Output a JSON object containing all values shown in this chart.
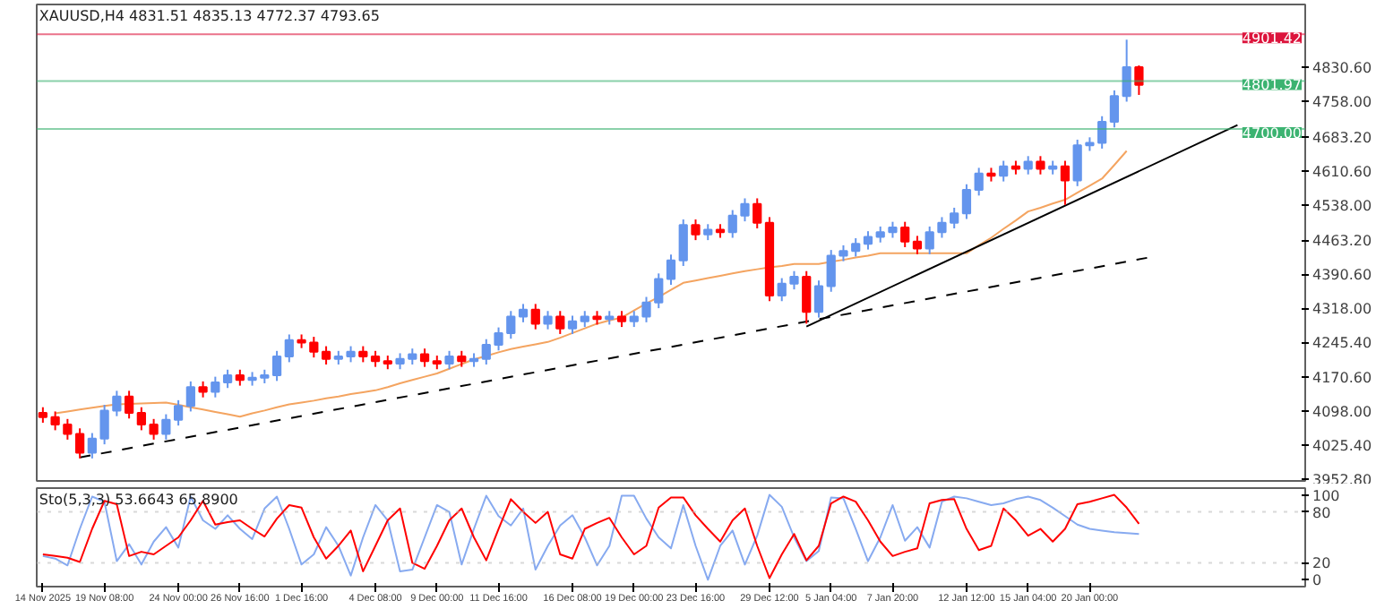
{
  "chart_data": [
    {
      "type": "candlestick",
      "title": "XAUUSD,H4  4831.51 4835.13 4772.37 4793.65",
      "categories": [
        null,
        null,
        null,
        null,
        null,
        null,
        null,
        null,
        null,
        null,
        null,
        null,
        null,
        null,
        null,
        null,
        null,
        null,
        null,
        null,
        null,
        null,
        null,
        null,
        null,
        null,
        null,
        null,
        null,
        null,
        null,
        null,
        null,
        null,
        null,
        null,
        null,
        null,
        null,
        null,
        null,
        null,
        null,
        null,
        null,
        null,
        null,
        null,
        null,
        null,
        null,
        null,
        null,
        null,
        null,
        null,
        null,
        null,
        null,
        null,
        null,
        null,
        null,
        null,
        null,
        null,
        null,
        null,
        null,
        null,
        null,
        null,
        null,
        null,
        null,
        null,
        null,
        null,
        null,
        null,
        null,
        null,
        null,
        null,
        null,
        null,
        null,
        null,
        null,
        null,
        null,
        null,
        null,
        null,
        null,
        null,
        null,
        null,
        null,
        null,
        null,
        null,
        null
      ],
      "ohlc": [
        [
          4095,
          4107,
          4074,
          4086
        ],
        [
          4086,
          4098,
          4058,
          4070
        ],
        [
          4070,
          4082,
          4038,
          4050
        ],
        [
          4050,
          4062,
          3998,
          4010
        ],
        [
          4010,
          4052,
          3998,
          4040
        ],
        [
          4040,
          4112,
          4028,
          4100
        ],
        [
          4100,
          4142,
          4088,
          4130
        ],
        [
          4130,
          4142,
          4083,
          4095
        ],
        [
          4095,
          4107,
          4058,
          4070
        ],
        [
          4070,
          4082,
          4038,
          4050
        ],
        [
          4050,
          4092,
          4038,
          4080
        ],
        [
          4080,
          4122,
          4068,
          4110
        ],
        [
          4110,
          4162,
          4098,
          4150
        ],
        [
          4150,
          4162,
          4128,
          4140
        ],
        [
          4140,
          4172,
          4128,
          4160
        ],
        [
          4160,
          4187,
          4148,
          4175
        ],
        [
          4175,
          4187,
          4153,
          4165
        ],
        [
          4165,
          4182,
          4153,
          4170
        ],
        [
          4170,
          4187,
          4158,
          4175
        ],
        [
          4175,
          4227,
          4163,
          4215
        ],
        [
          4215,
          4262,
          4203,
          4250
        ],
        [
          4250,
          4262,
          4233,
          4245
        ],
        [
          4245,
          4257,
          4213,
          4225
        ],
        [
          4225,
          4237,
          4198,
          4210
        ],
        [
          4210,
          4227,
          4198,
          4215
        ],
        [
          4215,
          4237,
          4203,
          4225
        ],
        [
          4225,
          4237,
          4203,
          4215
        ],
        [
          4215,
          4227,
          4193,
          4205
        ],
        [
          4205,
          4217,
          4188,
          4200
        ],
        [
          4200,
          4222,
          4188,
          4210
        ],
        [
          4210,
          4232,
          4198,
          4220
        ],
        [
          4220,
          4232,
          4193,
          4205
        ],
        [
          4205,
          4217,
          4188,
          4200
        ],
        [
          4200,
          4227,
          4188,
          4215
        ],
        [
          4215,
          4227,
          4193,
          4205
        ],
        [
          4205,
          4222,
          4193,
          4210
        ],
        [
          4210,
          4252,
          4198,
          4240
        ],
        [
          4240,
          4277,
          4228,
          4265
        ],
        [
          4265,
          4312,
          4253,
          4300
        ],
        [
          4300,
          4327,
          4288,
          4315
        ],
        [
          4315,
          4327,
          4273,
          4285
        ],
        [
          4285,
          4312,
          4273,
          4300
        ],
        [
          4300,
          4312,
          4263,
          4275
        ],
        [
          4275,
          4302,
          4263,
          4290
        ],
        [
          4290,
          4312,
          4278,
          4300
        ],
        [
          4300,
          4312,
          4283,
          4295
        ],
        [
          4295,
          4312,
          4283,
          4300
        ],
        [
          4300,
          4312,
          4278,
          4290
        ],
        [
          4290,
          4312,
          4278,
          4300
        ],
        [
          4300,
          4342,
          4288,
          4330
        ],
        [
          4330,
          4392,
          4318,
          4380
        ],
        [
          4380,
          4432,
          4368,
          4420
        ],
        [
          4420,
          4507,
          4408,
          4495
        ],
        [
          4495,
          4507,
          4463,
          4475
        ],
        [
          4475,
          4497,
          4463,
          4485
        ],
        [
          4485,
          4497,
          4468,
          4480
        ],
        [
          4480,
          4527,
          4468,
          4515
        ],
        [
          4515,
          4552,
          4503,
          4540
        ],
        [
          4540,
          4552,
          4488,
          4500
        ],
        [
          4500,
          4512,
          4333,
          4345
        ],
        [
          4345,
          4382,
          4333,
          4370
        ],
        [
          4370,
          4397,
          4358,
          4385
        ],
        [
          4385,
          4397,
          4285,
          4310
        ],
        [
          4310,
          4377,
          4298,
          4365
        ],
        [
          4365,
          4442,
          4353,
          4430
        ],
        [
          4430,
          4452,
          4418,
          4440
        ],
        [
          4440,
          4467,
          4428,
          4455
        ],
        [
          4455,
          4482,
          4443,
          4470
        ],
        [
          4470,
          4492,
          4458,
          4480
        ],
        [
          4480,
          4502,
          4468,
          4490
        ],
        [
          4490,
          4502,
          4448,
          4460
        ],
        [
          4460,
          4472,
          4433,
          4445
        ],
        [
          4445,
          4492,
          4433,
          4480
        ],
        [
          4480,
          4512,
          4468,
          4500
        ],
        [
          4500,
          4532,
          4488,
          4520
        ],
        [
          4520,
          4582,
          4508,
          4570
        ],
        [
          4570,
          4617,
          4558,
          4605
        ],
        [
          4605,
          4617,
          4588,
          4600
        ],
        [
          4600,
          4632,
          4588,
          4620
        ],
        [
          4620,
          4632,
          4603,
          4615
        ],
        [
          4615,
          4642,
          4603,
          4630
        ],
        [
          4630,
          4642,
          4603,
          4615
        ],
        [
          4615,
          4632,
          4603,
          4620
        ],
        [
          4620,
          4632,
          4538,
          4590
        ],
        [
          4590,
          4677,
          4578,
          4665
        ],
        [
          4665,
          4682,
          4653,
          4670
        ],
        [
          4670,
          4727,
          4658,
          4715
        ],
        [
          4715,
          4782,
          4703,
          4770
        ],
        [
          4770,
          4890,
          4758,
          4831.51
        ],
        [
          4831.51,
          4835.13,
          4772.37,
          4793.65
        ],
        null,
        null,
        null,
        null,
        null,
        null,
        null,
        null,
        null,
        null,
        null,
        null,
        null
      ],
      "series": [
        {
          "type": "line",
          "color": "#f4a460",
          "values": [
            null,
            4094,
            4098,
            4102,
            4106,
            4110,
            4113,
            4114,
            4115,
            4116,
            4117,
            4112,
            4107,
            4102,
            4097,
            4092,
            4087,
            4094,
            4100,
            4107,
            4113,
            4117,
            4121,
            4126,
            4130,
            4135,
            4139,
            4143,
            4150,
            4158,
            4165,
            4172,
            4179,
            4189,
            4199,
            4209,
            4216,
            4224,
            4231,
            4236,
            4241,
            4246,
            4255,
            4265,
            4275,
            4285,
            4292,
            4298,
            4313,
            4328,
            4342,
            4357,
            4372,
            4377,
            4382,
            4387,
            4392,
            4397,
            4401,
            4405,
            4408,
            4412,
            4412,
            4412,
            4417,
            4421,
            4426,
            4430,
            4435,
            4435,
            4435,
            4435,
            4435,
            4435,
            4435,
            4435,
            4452,
            4468,
            4487,
            4505,
            4524,
            4532,
            4541,
            4549,
            4564,
            4579,
            4594,
            4623,
            4653,
            null,
            null,
            null,
            null,
            null,
            null,
            null,
            null,
            null,
            null,
            null,
            null,
            null,
            null
          ]
        },
        {
          "type": "line",
          "color": "#000000",
          "line_style": "dashed",
          "values": [
            null,
            null,
            null,
            4000,
            null,
            null,
            null,
            null,
            null,
            null,
            null,
            null,
            null,
            null,
            null,
            null,
            null,
            null,
            null,
            null,
            null,
            null,
            null,
            null,
            null,
            null,
            null,
            null,
            null,
            null,
            null,
            null,
            null,
            null,
            null,
            null,
            null,
            null,
            null,
            null,
            null,
            null,
            null,
            null,
            null,
            null,
            null,
            null,
            null,
            null,
            null,
            null,
            null,
            null,
            null,
            null,
            null,
            null,
            null,
            null,
            null,
            null,
            null,
            null,
            null,
            null,
            null,
            null,
            null,
            null,
            null,
            null,
            null,
            null,
            null,
            null,
            null,
            null,
            null,
            null,
            null,
            null,
            null,
            null,
            null,
            null,
            null,
            null,
            null,
            null,
            4427,
            null,
            null,
            null,
            null,
            null,
            null,
            null,
            null,
            null,
            null,
            null,
            null
          ]
        },
        {
          "type": "line",
          "color": "#000000",
          "line_style": "solid",
          "values": [
            null,
            null,
            null,
            null,
            null,
            null,
            null,
            null,
            null,
            null,
            null,
            null,
            null,
            null,
            null,
            null,
            null,
            null,
            null,
            null,
            null,
            null,
            null,
            null,
            null,
            null,
            null,
            null,
            null,
            null,
            null,
            null,
            null,
            null,
            null,
            null,
            null,
            null,
            null,
            null,
            null,
            null,
            null,
            null,
            null,
            null,
            null,
            null,
            null,
            null,
            null,
            null,
            null,
            null,
            null,
            null,
            null,
            null,
            null,
            null,
            null,
            null,
            4279,
            null,
            null,
            null,
            null,
            null,
            null,
            null,
            null,
            null,
            null,
            null,
            null,
            null,
            null,
            null,
            null,
            null,
            null,
            null,
            null,
            null,
            null,
            null,
            null,
            null,
            null,
            null,
            null,
            null,
            null,
            null,
            null,
            null,
            null,
            4708,
            null,
            null,
            null,
            null,
            null
          ]
        }
      ],
      "ylim": [
        3950,
        4965
      ],
      "yticks": [
        {
          "value": 3952.8,
          "label": "3952.80"
        },
        {
          "value": 4025.4,
          "label": "4025.40"
        },
        {
          "value": 4098,
          "label": "4098.00"
        },
        {
          "value": 4170.6,
          "label": "4170.60"
        },
        {
          "value": 4245.4,
          "label": "4245.40"
        },
        {
          "value": 4318,
          "label": "4318.00"
        },
        {
          "value": 4390.6,
          "label": "4390.60"
        },
        {
          "value": 4463.2,
          "label": "4463.20"
        },
        {
          "value": 4538,
          "label": "4538.00"
        },
        {
          "value": 4610.6,
          "label": "4610.60"
        },
        {
          "value": 4683.2,
          "label": "4683.20"
        },
        {
          "value": 4758,
          "label": "4758.00"
        },
        {
          "value": 4830.6,
          "label": "4830.60"
        }
      ],
      "ref_lines": [
        {
          "axis": "y",
          "value": 4901.42,
          "label": "4901.42",
          "color": "#dc143c"
        },
        {
          "axis": "y",
          "value": 4801.97,
          "label": "4801.97",
          "color": "#3cb371"
        },
        {
          "axis": "y",
          "value": 4700,
          "label": "4700.00",
          "color": "#3cb371"
        }
      ],
      "tick_labels": "y"
    },
    {
      "type": "line",
      "title": "Sto(5,3,3) 53.6643 65.8900",
      "categories": [
        "14 Nov 2025",
        null,
        null,
        null,
        null,
        "19 Nov 08:00",
        null,
        null,
        null,
        null,
        null,
        "24 Nov 00:00",
        null,
        null,
        null,
        null,
        "26 Nov 16:00",
        null,
        null,
        null,
        null,
        "1 Dec 16:00",
        null,
        null,
        null,
        null,
        null,
        "4 Dec 08:00",
        null,
        null,
        null,
        null,
        "9 Dec 00:00",
        null,
        null,
        null,
        null,
        "11 Dec 16:00",
        null,
        null,
        null,
        null,
        null,
        "16 Dec 08:00",
        null,
        null,
        null,
        null,
        "19 Dec 00:00",
        null,
        null,
        null,
        null,
        "23 Dec 16:00",
        null,
        null,
        null,
        null,
        null,
        "29 Dec 12:00",
        null,
        null,
        null,
        null,
        "5 Jan 04:00",
        null,
        null,
        null,
        null,
        "7 Jan 20:00",
        null,
        null,
        null,
        null,
        null,
        "12 Jan 12:00",
        null,
        null,
        null,
        null,
        "15 Jan 04:00",
        null,
        null,
        null,
        null,
        "20 Jan 00:00",
        null,
        null,
        null,
        null,
        null,
        null,
        null,
        null,
        null,
        null,
        null,
        null,
        null,
        null,
        null,
        null,
        null
      ],
      "series": [
        {
          "color": "#87aaf0",
          "values": [
            28,
            25,
            17,
            60,
            98,
            92,
            22,
            42,
            18,
            45,
            62,
            38,
            98,
            70,
            60,
            76,
            60,
            48,
            84,
            98,
            60,
            18,
            30,
            62,
            40,
            5,
            50,
            88,
            70,
            10,
            12,
            50,
            88,
            80,
            18,
            60,
            99,
            75,
            64,
            84,
            12,
            40,
            64,
            76,
            50,
            17,
            40,
            99,
            99,
            72,
            50,
            37,
            88,
            40,
            0,
            40,
            58,
            18,
            52,
            100,
            86,
            50,
            22,
            34,
            97,
            96,
            60,
            22,
            50,
            88,
            46,
            62,
            38,
            92,
            98,
            96,
            92,
            88,
            90,
            95,
            98,
            94,
            85,
            75,
            65,
            60,
            58,
            56,
            55,
            54,
            null,
            null,
            null,
            null,
            null,
            null,
            null,
            null,
            null,
            null,
            null,
            null,
            null
          ]
        },
        {
          "color": "#ff0000",
          "values": [
            30,
            28,
            26,
            21,
            60,
            93,
            89,
            28,
            33,
            30,
            40,
            50,
            70,
            93,
            65,
            68,
            70,
            60,
            51,
            72,
            88,
            85,
            50,
            25,
            40,
            58,
            10,
            40,
            70,
            84,
            20,
            13,
            40,
            70,
            84,
            50,
            23,
            60,
            95,
            80,
            67,
            80,
            30,
            25,
            60,
            67,
            73,
            50,
            30,
            40,
            85,
            97,
            97,
            76,
            60,
            45,
            70,
            84,
            40,
            2,
            30,
            54,
            23,
            40,
            90,
            98,
            92,
            70,
            45,
            28,
            33,
            37,
            90,
            94,
            95,
            60,
            35,
            40,
            84,
            70,
            52,
            60,
            45,
            60,
            89,
            92,
            96,
            100,
            85,
            66,
            null,
            null,
            null,
            null,
            null,
            null,
            null,
            null,
            null,
            null,
            null,
            null,
            null
          ]
        }
      ],
      "ylim": [
        -8,
        108
      ],
      "yticks": [
        0,
        20,
        80,
        100
      ],
      "ref_lines": [
        {
          "axis": "y",
          "value": 80,
          "color": "#c0c0c0",
          "line_style": "dotted"
        },
        {
          "axis": "y",
          "value": 20,
          "color": "#c0c0c0",
          "line_style": "dotted"
        }
      ]
    }
  ]
}
